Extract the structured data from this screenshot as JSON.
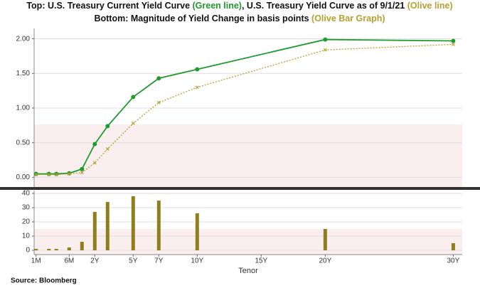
{
  "header": {
    "title_line1": [
      {
        "text": "Top: U.S. Treasury Current Yield Curve ",
        "color": "#111111"
      },
      {
        "text": "(Green line)",
        "color": "#1f9a2e"
      },
      {
        "text": ", U.S. Treasury Yield Curve as of 9/1/21 ",
        "color": "#111111"
      },
      {
        "text": "(Olive line)",
        "color": "#b8a030"
      }
    ],
    "title_line2": [
      {
        "text": "Bottom: Magnitude of Yield Change in basis points ",
        "color": "#111111"
      },
      {
        "text": "(Olive Bar Graph)",
        "color": "#b8a030"
      }
    ],
    "source": "Source: Bloomberg"
  },
  "chart_data": [
    {
      "type": "line",
      "x": [
        0.0833,
        0.1667,
        0.25,
        0.5,
        1,
        2,
        3,
        5,
        7,
        10,
        20,
        30
      ],
      "xlim": [
        0.075,
        30.7
      ],
      "series": [
        {
          "name": "Green line",
          "color": "#1f9a2e",
          "marker": "dot",
          "values": [
            0.05,
            0.05,
            0.05,
            0.06,
            0.12,
            0.48,
            0.74,
            1.16,
            1.43,
            1.56,
            1.99,
            1.97
          ]
        },
        {
          "name": "Olive line",
          "color": "#b8a030",
          "marker": "cross",
          "dashed": true,
          "values": [
            0.04,
            0.04,
            0.04,
            0.05,
            0.07,
            0.21,
            0.41,
            0.78,
            1.08,
            1.3,
            1.84,
            1.92
          ]
        }
      ],
      "ylim": [
        -0.16,
        2.15
      ],
      "yticks": [
        {
          "value": 0,
          "label": "0.00"
        },
        {
          "value": 0.5,
          "label": "0.50"
        },
        {
          "value": 1,
          "label": "1.00"
        },
        {
          "value": 1.5,
          "label": "1.50"
        },
        {
          "value": 2,
          "label": "2.00"
        }
      ],
      "grid": true
    },
    {
      "type": "bar",
      "x": [
        0.0833,
        0.1667,
        0.25,
        0.5,
        1,
        2,
        3,
        5,
        7,
        10,
        20,
        30
      ],
      "xlim": [
        0.075,
        30.7
      ],
      "values": [
        1,
        1,
        1,
        2,
        6,
        27,
        34,
        38,
        35,
        26,
        15,
        5
      ],
      "color": "#8f7f1c",
      "ylim": [
        -3,
        42
      ],
      "yticks": [
        0,
        10,
        20,
        30,
        40
      ],
      "xticks": [
        {
          "value": 0.0833,
          "label": "1M"
        },
        {
          "value": 0.5,
          "label": "6M"
        },
        {
          "value": 2,
          "label": "2Y"
        },
        {
          "value": 5,
          "label": "5Y"
        },
        {
          "value": 7,
          "label": "7Y"
        },
        {
          "value": 10,
          "label": "10Y"
        },
        {
          "value": 15,
          "label": "15Y"
        },
        {
          "value": 20,
          "label": "20Y"
        },
        {
          "value": 30,
          "label": "30Y"
        }
      ],
      "xlabel": "Tenor",
      "grid": true
    }
  ]
}
